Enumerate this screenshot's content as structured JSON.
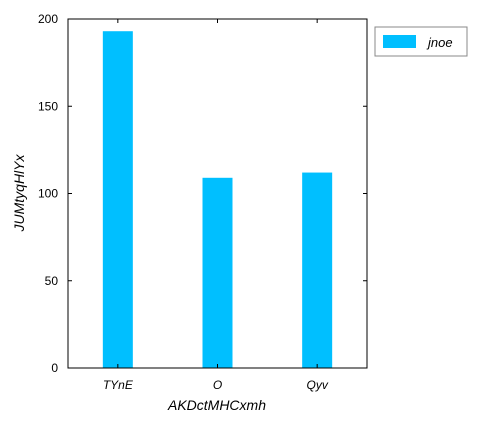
{
  "chart_data": {
    "type": "bar",
    "categories": [
      "TYnE",
      "O",
      "Qyv"
    ],
    "series": [
      {
        "name": "jnoe",
        "values": [
          193,
          109,
          112
        ],
        "color": "#00BFFF"
      }
    ],
    "xlabel": "AKDctMHCxmh",
    "ylabel": "JUMtyqHlYx",
    "ylim": [
      0,
      200
    ],
    "yticks": [
      0,
      50,
      100,
      150,
      200
    ],
    "grid": false,
    "legend": "top-right"
  }
}
